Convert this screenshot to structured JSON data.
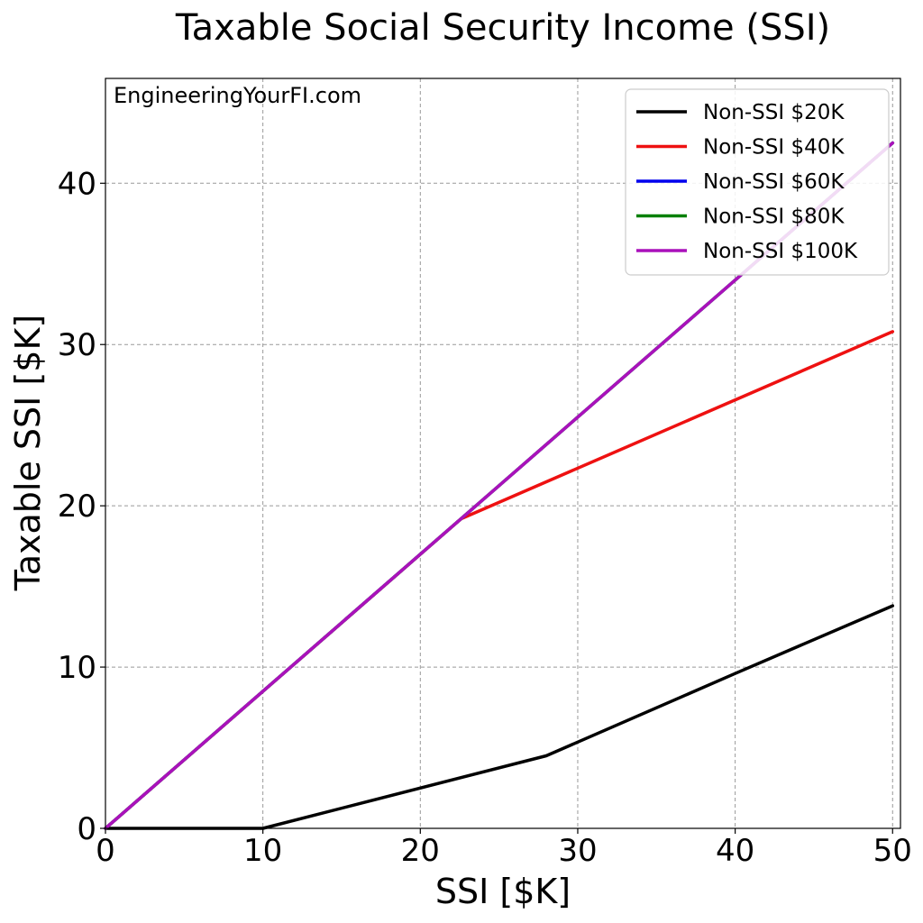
{
  "chart_data": {
    "type": "line",
    "title": "Taxable Social Security Income (SSI)",
    "xlabel": "SSI [$K]",
    "ylabel": "Taxable SSI [$K]",
    "watermark": "EngineeringYourFI.com",
    "xlim": [
      0,
      50.5
    ],
    "ylim": [
      0,
      46.5
    ],
    "x_ticks": [
      0,
      10,
      20,
      30,
      40,
      50
    ],
    "y_ticks": [
      0,
      10,
      20,
      30,
      40
    ],
    "grid": true,
    "legend_position": "top-right",
    "series": [
      {
        "name": "Non-SSI $20K",
        "color": "#000000",
        "x": [
          0,
          10,
          28,
          40,
          50
        ],
        "y": [
          0,
          0,
          4.5,
          9.6,
          13.8
        ]
      },
      {
        "name": "Non-SSI $40K",
        "color": "#ee1111",
        "x": [
          0,
          22.6,
          50
        ],
        "y": [
          0,
          19.2,
          30.8
        ]
      },
      {
        "name": "Non-SSI $60K",
        "color": "#0000ee",
        "x": [
          0,
          50
        ],
        "y": [
          0,
          42.5
        ]
      },
      {
        "name": "Non-SSI $80K",
        "color": "#008000",
        "x": [
          0,
          50
        ],
        "y": [
          0,
          42.5
        ]
      },
      {
        "name": "Non-SSI $100K",
        "color": "#aa11bb",
        "x": [
          0,
          50
        ],
        "y": [
          0,
          42.5
        ]
      }
    ]
  }
}
